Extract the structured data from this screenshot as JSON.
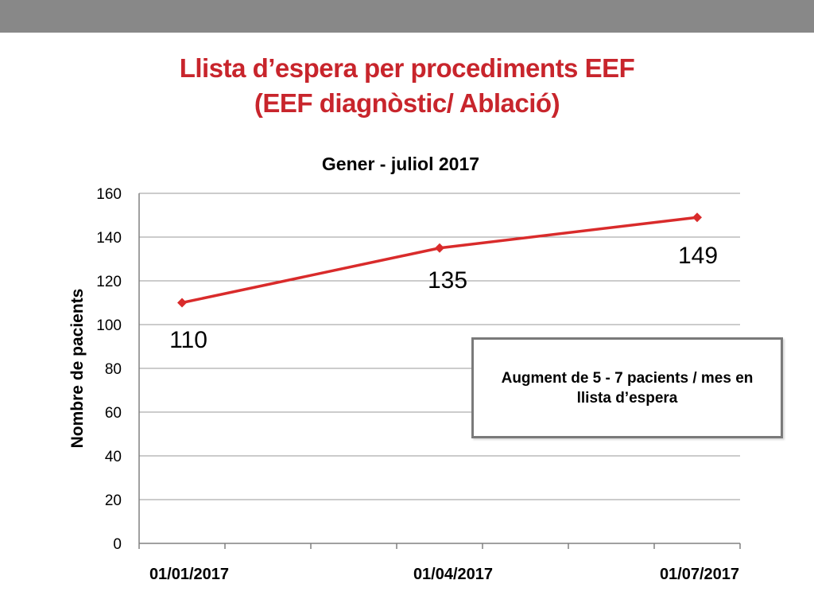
{
  "slide": {
    "title_line1": "Llista d’espera per procediments EEF",
    "title_line2": "(EEF diagnòstic/ Ablació)"
  },
  "chart_data": {
    "type": "line",
    "title": "Gener - juliol 2017",
    "xlabel": "",
    "ylabel": "Nombre de  pacients",
    "categories": [
      "01/01/2017",
      "01/04/2017",
      "01/07/2017"
    ],
    "series": [
      {
        "values": [
          110,
          135,
          149
        ],
        "color": "#d92b2b"
      }
    ],
    "data_labels": [
      "110",
      "135",
      "149"
    ],
    "ylim": [
      0,
      160
    ],
    "y_ticks": [
      0,
      20,
      40,
      60,
      80,
      100,
      120,
      140,
      160
    ],
    "grid": true,
    "legend": "none"
  },
  "annotation": {
    "text": "Augment de 5 - 7 pacients / mes en llista d’espera"
  },
  "colors": {
    "accent": "#c8252c",
    "line": "#d92b2b",
    "top_bar": "#888888",
    "grid": "#9a9a9a"
  }
}
